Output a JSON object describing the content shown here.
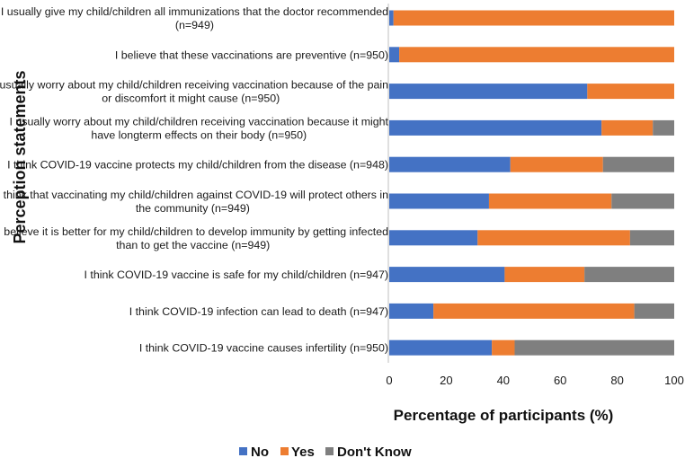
{
  "chart_data": {
    "type": "bar",
    "orientation": "horizontal",
    "stacked": true,
    "title": "",
    "xlabel": "Percentage of participants (%)",
    "ylabel": "Perception statements",
    "xlim": [
      0,
      100
    ],
    "xticks": [
      "0",
      "20",
      "40",
      "60",
      "80",
      "100"
    ],
    "categories": [
      {
        "lines": [
          "I usually give my child/children all immunizations that the doctor recommended",
          "(n=949)"
        ]
      },
      {
        "lines": [
          "I believe that these vaccinations are preventive (n=950)"
        ]
      },
      {
        "lines": [
          "I usually worry about my child/children receiving vaccination  because of the pain",
          "or discomfort it might cause (n=950)"
        ]
      },
      {
        "lines": [
          "I usually worry about my child/children receiving vaccination because it might",
          "have longterm effects on their body (n=950)"
        ]
      },
      {
        "lines": [
          "I think COVID-19 vaccine protects my child/children from the disease (n=948)"
        ]
      },
      {
        "lines": [
          "I think that vaccinating my child/children against COVID-19  will protect others in",
          "the community (n=949)"
        ]
      },
      {
        "lines": [
          "I believe it is better for my child/children to develop immunity by getting infected",
          "than to get the vaccine (n=949)"
        ]
      },
      {
        "lines": [
          "I think COVID-19 vaccine is safe for my child/children (n=947)"
        ]
      },
      {
        "lines": [
          "I think COVID-19 infection can lead to death (n=947)"
        ]
      },
      {
        "lines": [
          "I think COVID-19 vaccine causes infertility (n=950)"
        ]
      }
    ],
    "series": [
      {
        "name": "No",
        "color": "#4472c4",
        "values": [
          1.5,
          3.5,
          69.5,
          74.5,
          42.5,
          35,
          31,
          40.5,
          15.5,
          36
        ]
      },
      {
        "name": "Yes",
        "color": "#ed7d31",
        "values": [
          98.5,
          96.5,
          30.5,
          18,
          32.5,
          43,
          53.5,
          28,
          70.5,
          8
        ]
      },
      {
        "name": "Don't Know",
        "color": "#7f7f7f",
        "values": [
          0,
          0,
          0,
          7.5,
          25,
          22,
          15.5,
          31.5,
          14,
          56
        ]
      }
    ],
    "legend_position": "bottom"
  }
}
